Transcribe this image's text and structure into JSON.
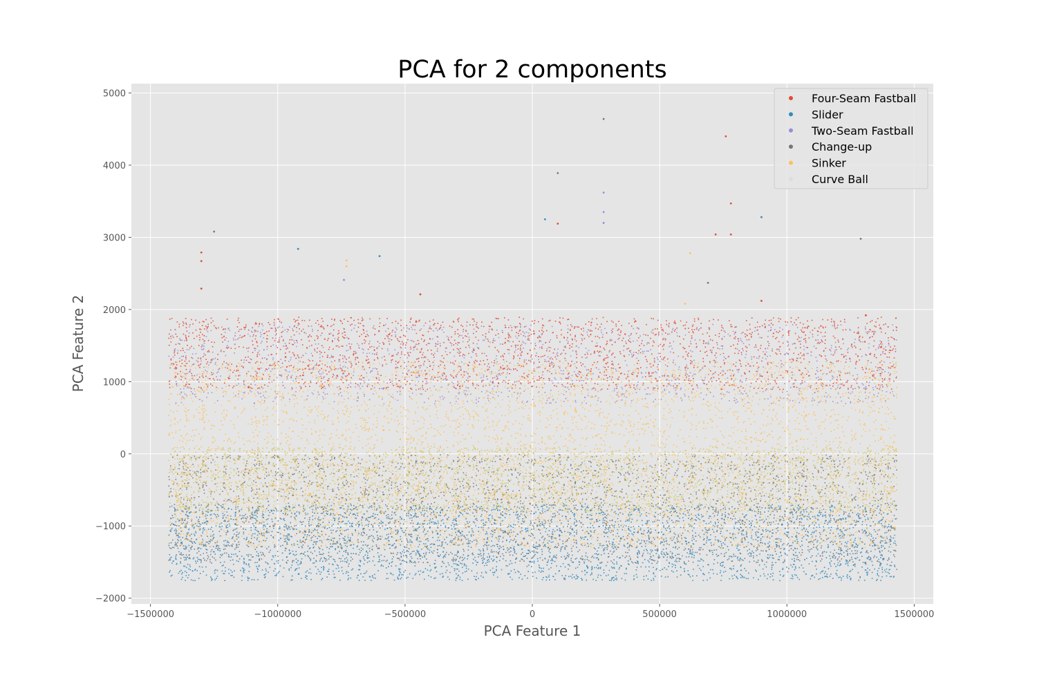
{
  "chart_data": {
    "type": "scatter",
    "title": "PCA for 2 components",
    "xlabel": "PCA Feature 1",
    "ylabel": "PCA Feature 2",
    "xlim": [
      -1575000,
      1575000
    ],
    "ylim": [
      -2080,
      5130
    ],
    "x_ticks": [
      -1500000,
      -1000000,
      -500000,
      0,
      500000,
      1000000,
      1500000
    ],
    "x_tick_labels": [
      "−1500000",
      "−1000000",
      "−500000",
      "0",
      "500000",
      "1000000",
      "1500000"
    ],
    "y_ticks": [
      -2000,
      -1000,
      0,
      1000,
      2000,
      3000,
      4000,
      5000
    ],
    "y_tick_labels": [
      "−2000",
      "−1000",
      "0",
      "1000",
      "2000",
      "3000",
      "4000",
      "5000"
    ],
    "grid": true,
    "legend_position": "top-right",
    "x_data_range": [
      -1430000,
      1430000
    ],
    "series": [
      {
        "name": "Four-Seam Fastball",
        "color": "#e24a33",
        "y_range": [
          900,
          1900
        ]
      },
      {
        "name": "Slider",
        "color": "#348abd",
        "y_range": [
          -1750,
          -700
        ]
      },
      {
        "name": "Two-Seam Fastball",
        "color": "#988ed5",
        "y_range": [
          700,
          1800
        ]
      },
      {
        "name": "Change-up",
        "color": "#777777",
        "y_range": [
          -1500,
          0
        ]
      },
      {
        "name": "Sinker",
        "color": "#fbc15e",
        "y_range": [
          -1300,
          1300
        ]
      },
      {
        "name": "Curve Ball",
        "color": "#dddddd",
        "y_range": [
          -1700,
          0
        ]
      }
    ],
    "overlap_tint": {
      "color": "#c8bd48",
      "y_range": [
        -800,
        100
      ]
    },
    "outliers": [
      {
        "series": "Four-Seam Fastball",
        "x": 760000,
        "y": 4400
      },
      {
        "series": "Four-Seam Fastball",
        "x": 780000,
        "y": 3470
      },
      {
        "series": "Four-Seam Fastball",
        "x": 780000,
        "y": 3040
      },
      {
        "series": "Four-Seam Fastball",
        "x": 720000,
        "y": 3040
      },
      {
        "series": "Four-Seam Fastball",
        "x": 100000,
        "y": 3190
      },
      {
        "series": "Four-Seam Fastball",
        "x": -1300000,
        "y": 2790
      },
      {
        "series": "Four-Seam Fastball",
        "x": -1300000,
        "y": 2670
      },
      {
        "series": "Four-Seam Fastball",
        "x": -1300000,
        "y": 2290
      },
      {
        "series": "Four-Seam Fastball",
        "x": -440000,
        "y": 2210
      },
      {
        "series": "Four-Seam Fastball",
        "x": 1310000,
        "y": 1920
      },
      {
        "series": "Four-Seam Fastball",
        "x": 900000,
        "y": 2120
      },
      {
        "series": "Slider",
        "x": -920000,
        "y": 2840
      },
      {
        "series": "Slider",
        "x": -600000,
        "y": 2740
      },
      {
        "series": "Slider",
        "x": 900000,
        "y": 3280
      },
      {
        "series": "Slider",
        "x": 50000,
        "y": 3250
      },
      {
        "series": "Two-Seam Fastball",
        "x": 280000,
        "y": 3620
      },
      {
        "series": "Two-Seam Fastball",
        "x": 280000,
        "y": 3350
      },
      {
        "series": "Two-Seam Fastball",
        "x": 280000,
        "y": 3200
      },
      {
        "series": "Two-Seam Fastball",
        "x": -740000,
        "y": 2410
      },
      {
        "series": "Change-up",
        "x": 280000,
        "y": 4640
      },
      {
        "series": "Change-up",
        "x": 100000,
        "y": 3890
      },
      {
        "series": "Change-up",
        "x": -1250000,
        "y": 3080
      },
      {
        "series": "Change-up",
        "x": 1290000,
        "y": 2980
      },
      {
        "series": "Change-up",
        "x": 690000,
        "y": 2370
      },
      {
        "series": "Sinker",
        "x": -730000,
        "y": 2680
      },
      {
        "series": "Sinker",
        "x": -730000,
        "y": 2600
      },
      {
        "series": "Sinker",
        "x": 620000,
        "y": 2780
      },
      {
        "series": "Sinker",
        "x": 600000,
        "y": 2080
      }
    ]
  }
}
